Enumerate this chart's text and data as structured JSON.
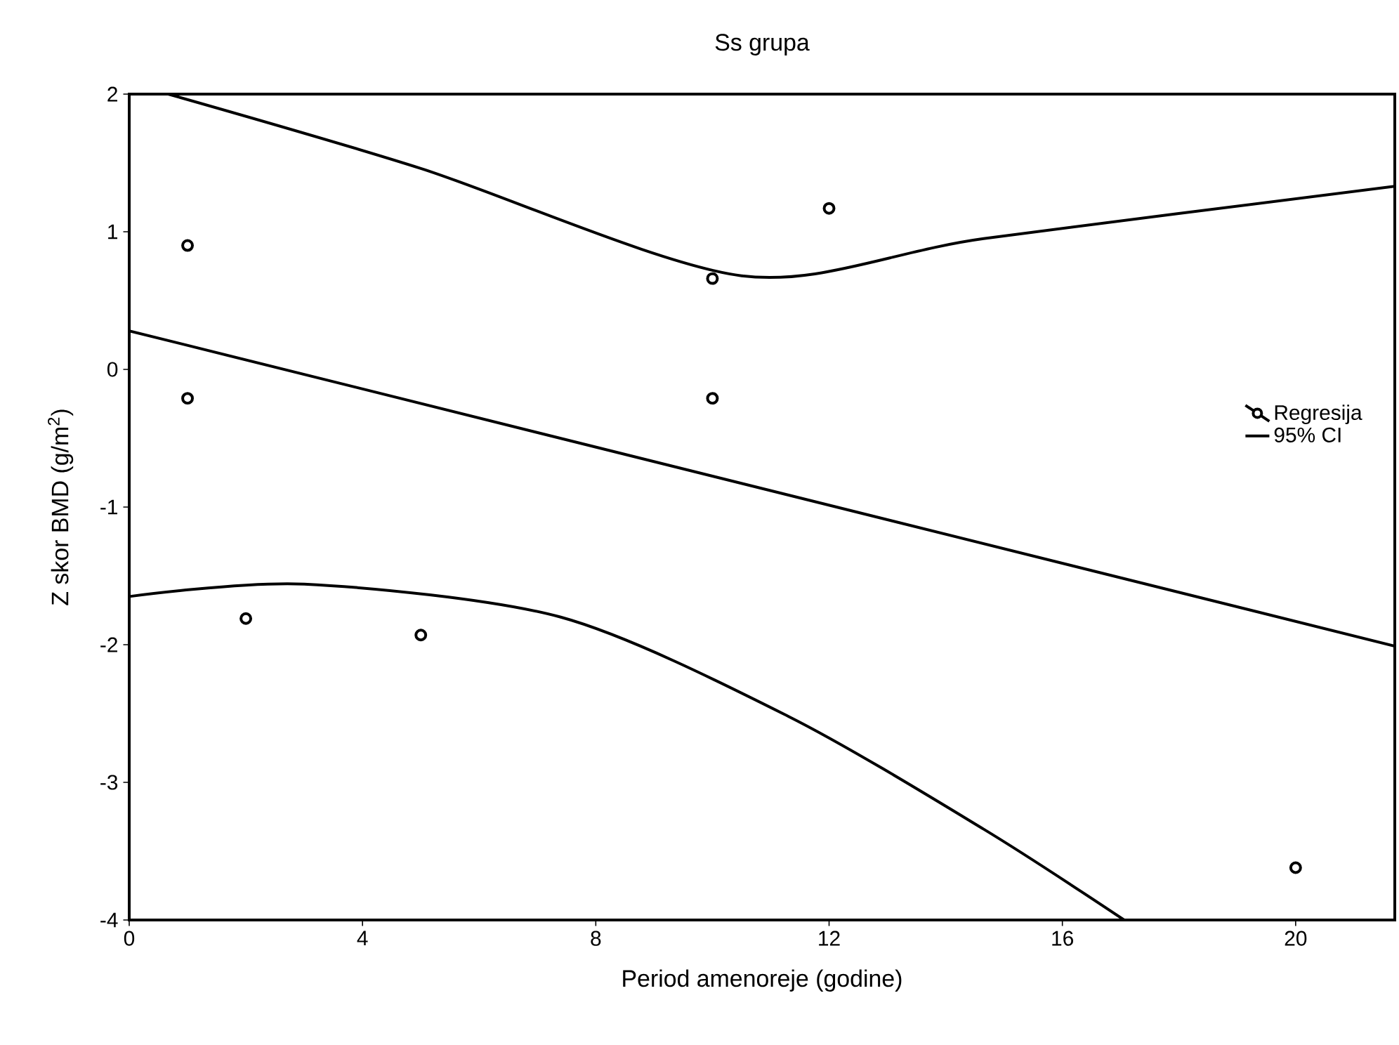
{
  "chart_data": {
    "type": "scatter",
    "title": "Ss grupa",
    "xlabel": "Period amenoreje (godine)",
    "ylabel": "Z skor BMD (g/m$^{2}$)",
    "xlim": [
      0,
      21.7
    ],
    "ylim": [
      -4,
      2
    ],
    "xticks": [
      0,
      4,
      8,
      12,
      16,
      20
    ],
    "yticks": [
      -4,
      -3,
      -2,
      -1,
      0,
      1,
      2
    ],
    "legend": "right",
    "marker": "circle",
    "series": [
      {
        "color": "#000000",
        "x": [
          1,
          1,
          2,
          5,
          10,
          10,
          12,
          20
        ],
        "values": [
          0.9,
          -0.21,
          -1.81,
          -1.93,
          0.66,
          -0.21,
          1.17,
          -3.62
        ]
      },
      {
        "type": "line",
        "marker": "none",
        "name": "Regresija",
        "color": "#000000",
        "x": [
          0,
          21.7
        ],
        "values": [
          0.28,
          -2.01
        ]
      },
      {
        "type": "line",
        "marker": "none",
        "name": "95% CI",
        "color": "#000000",
        "x": [
          0.67,
          5,
          10.5,
          14.65,
          21.7
        ],
        "values": [
          2,
          1.46,
          0.68,
          0.95,
          1.33
        ]
      },
      {
        "type": "line",
        "marker": "none",
        "color": "#000000",
        "x": [
          0,
          3,
          7.4,
          11.3,
          14.65,
          17.06
        ],
        "values": [
          -1.65,
          -1.56,
          -1.8,
          -2.52,
          -3.34,
          -4
        ]
      }
    ]
  }
}
